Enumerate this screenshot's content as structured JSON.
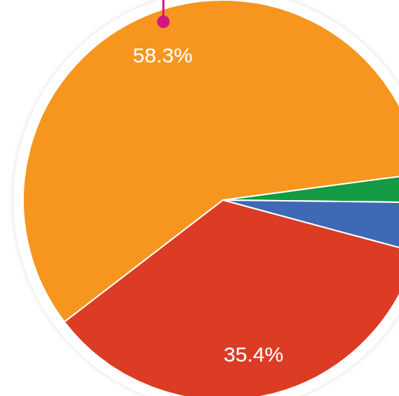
{
  "chart_data": {
    "type": "pie",
    "values": [
      58.3,
      2.3,
      4.0,
      35.4
    ],
    "value_labels": [
      "58.3%",
      null,
      null,
      "35.4%"
    ],
    "colors": [
      "#f6961e",
      "#139a43",
      "#3f68b5",
      "#dc3c24"
    ],
    "data_labels": true
  }
}
